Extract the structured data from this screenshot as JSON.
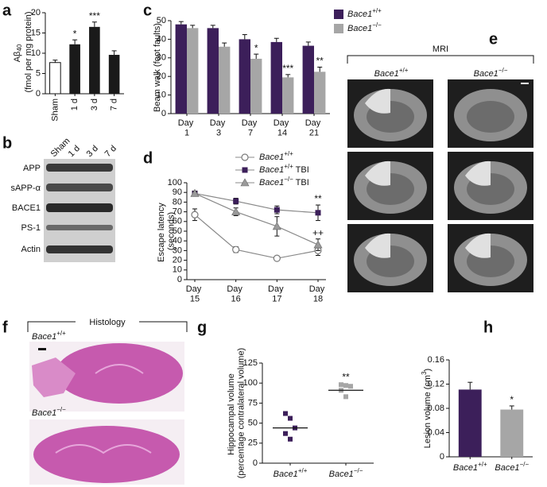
{
  "chart_data": [
    {
      "panel": "a",
      "type": "bar",
      "y_label": "Aβ40 (fmol per mg protein)",
      "categories": [
        "Sham",
        "1 d",
        "3 d",
        "7 d"
      ],
      "values": [
        7.7,
        12.2,
        16.5,
        9.6
      ],
      "errors": [
        0.6,
        1.1,
        1.2,
        1.0
      ],
      "colors": [
        "#ffffff",
        "#1a1a1a",
        "#1a1a1a",
        "#1a1a1a"
      ],
      "significance": [
        null,
        "*",
        "***",
        null
      ],
      "ylim": [
        0,
        20
      ],
      "yticks": [
        0,
        5,
        10,
        15,
        20
      ]
    },
    {
      "panel": "c",
      "type": "bar",
      "y_label": "Beam walk (foot faults)",
      "categories": [
        "Day 1",
        "Day 3",
        "Day 7",
        "Day 14",
        "Day 21"
      ],
      "series": [
        {
          "name": "Bace1+/+",
          "color": "#3c1f5a",
          "values": [
            48,
            46,
            40,
            38.5,
            36.5
          ],
          "errors": [
            1.5,
            1.5,
            2.5,
            2,
            2
          ],
          "significance": [
            null,
            null,
            null,
            null,
            null
          ]
        },
        {
          "name": "Bace1−/−",
          "color": "#a6a6a6",
          "values": [
            46,
            36,
            29.5,
            19.5,
            22.5
          ],
          "errors": [
            1.5,
            2,
            2.5,
            1.5,
            2.5
          ],
          "significance": [
            null,
            null,
            "*",
            "***",
            "**"
          ]
        }
      ],
      "ylim": [
        0,
        50
      ],
      "yticks": [
        0,
        10,
        20,
        30,
        40,
        50
      ],
      "legend": "upper right"
    },
    {
      "panel": "d",
      "type": "line",
      "y_label": "Escape latency (seconds)",
      "categories": [
        "Day 15",
        "Day 16",
        "Day 17",
        "Day 18"
      ],
      "series": [
        {
          "name": "Bace1+/+",
          "color": "#7a7a7a",
          "marker": "open-circle",
          "values": [
            67,
            31,
            22,
            30
          ],
          "errors": [
            6,
            3,
            2,
            5
          ],
          "significance": [
            null,
            null,
            null,
            null
          ]
        },
        {
          "name": "Bace1+/+ TBI",
          "color": "#3c1f5a",
          "marker": "square",
          "values": [
            89,
            81,
            72,
            69
          ],
          "errors": [
            2,
            3,
            4,
            8
          ],
          "significance": [
            null,
            null,
            null,
            "**"
          ]
        },
        {
          "name": "Bace1−/− TBI",
          "color": "#9a9a9a",
          "marker": "triangle",
          "values": [
            89,
            70,
            55,
            36
          ],
          "errors": [
            2,
            4,
            10,
            6
          ],
          "significance": [
            null,
            null,
            null,
            "++"
          ]
        }
      ],
      "ylim": [
        0,
        100
      ],
      "yticks": [
        0,
        10,
        20,
        30,
        40,
        50,
        60,
        70,
        80,
        90,
        100
      ],
      "legend": "upper center"
    },
    {
      "panel": "g",
      "type": "dot",
      "y_label": "Hippocampal volume (percentage contralateral volume)",
      "categories": [
        "Bace1+/+",
        "Bace1−/−"
      ],
      "values": [
        [
          62,
          56,
          44,
          37,
          30
        ],
        [
          98,
          97,
          96,
          91,
          83
        ]
      ],
      "means": [
        44,
        91
      ],
      "colors": [
        "#3c1f5a",
        "#a6a6a6"
      ],
      "significance": [
        null,
        "**"
      ],
      "ylim": [
        0,
        125
      ],
      "yticks": [
        0,
        25,
        50,
        75,
        100,
        125
      ]
    },
    {
      "panel": "h",
      "type": "bar",
      "y_label": "Lesion volume (cm3)",
      "categories": [
        "Bace1+/+",
        "Bace1−/−"
      ],
      "values": [
        0.111,
        0.078
      ],
      "errors": [
        0.012,
        0.006
      ],
      "colors": [
        "#3c1f5a",
        "#a6a6a6"
      ],
      "significance": [
        null,
        "*"
      ],
      "ylim": [
        0,
        0.16
      ],
      "yticks": [
        0,
        0.04,
        0.08,
        0.12,
        0.16
      ]
    }
  ],
  "blot": {
    "panel": "b",
    "lanes": [
      "Sham",
      "1 d",
      "3 d",
      "7 d"
    ],
    "rows": [
      "APP",
      "sAPP-α",
      "BACE1",
      "PS-1",
      "Actin"
    ]
  },
  "mri": {
    "panel": "e",
    "title": "MRI",
    "columns": [
      "Bace1+/+",
      "Bace1−/−"
    ]
  },
  "histology": {
    "panel": "f",
    "title": "Histology",
    "rows": [
      "Bace1+/+",
      "Bace1−/−"
    ]
  }
}
